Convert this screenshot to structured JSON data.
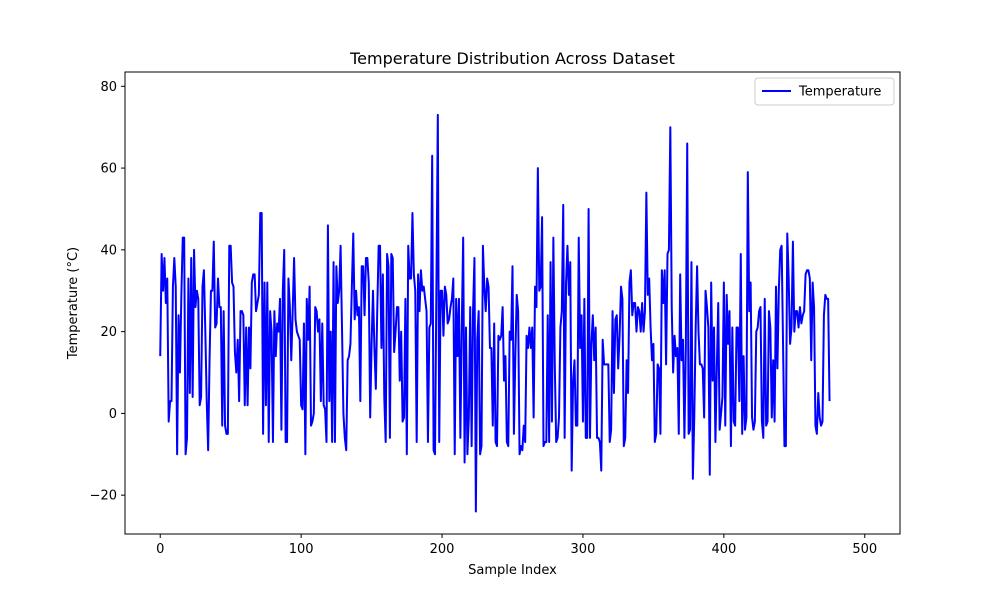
{
  "chart_data": {
    "type": "line",
    "title": "Temperature Distribution Across Dataset",
    "xlabel": "Sample Index",
    "ylabel": "Temperature (°C)",
    "xlim": [
      -25,
      525
    ],
    "ylim": [
      -29.5,
      83.5
    ],
    "x_ticks": [
      0,
      100,
      200,
      300,
      400,
      500
    ],
    "y_ticks": [
      -20,
      0,
      20,
      40,
      60,
      80
    ],
    "x_tick_labels": [
      "0",
      "100",
      "200",
      "300",
      "400",
      "500"
    ],
    "y_tick_labels": [
      "−20",
      "0",
      "20",
      "40",
      "60",
      "80"
    ],
    "legend_position": "top-right",
    "grid": false,
    "series": [
      {
        "name": "Temperature",
        "color": "#0000ff",
        "x_start": 0,
        "x_step": 1,
        "values": [
          14,
          39,
          30,
          38,
          27,
          33,
          -2,
          3,
          3,
          31,
          38,
          31,
          -10,
          24,
          10,
          29,
          43,
          43,
          -10,
          -6,
          33,
          5,
          38,
          4,
          40,
          26,
          30,
          28,
          2,
          4,
          31,
          35,
          20,
          3,
          -9,
          13,
          30,
          30,
          42,
          21,
          22,
          33,
          26,
          26,
          -3,
          25,
          -3,
          -5,
          -5,
          41,
          41,
          32,
          31,
          15,
          10,
          18,
          3,
          25,
          25,
          24,
          2,
          21,
          2,
          21,
          11,
          32,
          34,
          34,
          25,
          27,
          29,
          49,
          49,
          -5,
          32,
          2,
          32,
          -7,
          25,
          20,
          -7,
          25,
          14,
          22,
          20,
          28,
          -4,
          30,
          40,
          -7,
          -7,
          33,
          26,
          13,
          25,
          38,
          23,
          20,
          19,
          18,
          2,
          1,
          22,
          -10,
          28,
          18,
          31,
          -3,
          -2,
          0,
          26,
          25,
          20,
          23,
          3,
          22,
          2,
          1,
          -7,
          46,
          3,
          20,
          -7,
          37,
          -7,
          36,
          27,
          30,
          41,
          21,
          0,
          -6,
          -9,
          13,
          14,
          17,
          31,
          44,
          23,
          30,
          24,
          26,
          3,
          36,
          36,
          24,
          38,
          38,
          32,
          -1,
          17,
          30,
          16,
          6,
          25,
          41,
          41,
          16,
          34,
          4,
          -7,
          39,
          36,
          -6,
          39,
          38,
          15,
          20,
          26,
          26,
          8,
          20,
          -2,
          -1,
          28,
          -10,
          41,
          33,
          33,
          49,
          34,
          30,
          -7,
          34,
          25,
          35,
          30,
          31,
          28,
          25,
          -7,
          21,
          22,
          63,
          -9,
          -10,
          31,
          73,
          -7,
          30,
          30,
          19,
          31,
          29,
          22,
          23,
          26,
          28,
          33,
          -10,
          28,
          14,
          28,
          -6,
          21,
          43,
          -12,
          21,
          -10,
          -1,
          26,
          -8,
          25,
          38,
          -24,
          18,
          25,
          -10,
          -8,
          41,
          31,
          25,
          33,
          31,
          16,
          16,
          -3,
          22,
          -7,
          -8,
          19,
          18,
          19,
          26,
          8,
          14,
          -7,
          -8,
          20,
          18,
          36,
          -5,
          14,
          29,
          25,
          -10,
          -8,
          -9,
          -3,
          -7,
          19,
          16,
          21,
          16,
          21,
          -1,
          31,
          26,
          60,
          30,
          31,
          48,
          -8,
          -7,
          -7,
          24,
          -7,
          37,
          -2,
          43,
          12,
          -7,
          -6,
          -1,
          21,
          25,
          51,
          -6,
          32,
          41,
          29,
          37,
          -14,
          8,
          13,
          -3,
          -3,
          43,
          16,
          24,
          -2,
          28,
          -6,
          -6,
          50,
          -6,
          17,
          24,
          13,
          21,
          -6,
          -6,
          -7,
          -14,
          18,
          12,
          12,
          12,
          12,
          -7,
          -4,
          25,
          5,
          23,
          24,
          11,
          19,
          31,
          28,
          -8,
          -6,
          13,
          5,
          32,
          35,
          24,
          27,
          27,
          20,
          26,
          25,
          20,
          27,
          20,
          25,
          54,
          29,
          33,
          21,
          13,
          17,
          -7,
          -5,
          12,
          11,
          -5,
          35,
          27,
          35,
          12,
          39,
          40,
          70,
          26,
          10,
          19,
          14,
          16,
          -5,
          34,
          13,
          18,
          -6,
          16,
          66,
          -5,
          -4,
          37,
          -16,
          -1,
          21,
          36,
          20,
          12,
          12,
          11,
          -1,
          30,
          26,
          21,
          -15,
          32,
          8,
          21,
          -7,
          11,
          27,
          -4,
          0,
          4,
          32,
          -3,
          29,
          17,
          25,
          -8,
          21,
          -2,
          -3,
          21,
          21,
          3,
          39,
          -5,
          14,
          -4,
          -1,
          59,
          25,
          32,
          -1,
          -4,
          -2,
          20,
          21,
          25,
          26,
          -2,
          -6,
          28,
          -3,
          -2,
          25,
          21,
          -1,
          13,
          -2,
          31,
          11,
          30,
          40,
          41,
          17,
          -8,
          -8,
          44,
          33,
          17,
          21,
          42,
          20,
          25,
          25,
          21,
          26,
          22,
          24,
          25,
          34,
          35,
          35,
          33,
          13,
          32,
          26,
          -3,
          -5,
          5,
          -1,
          -3,
          -2,
          24,
          29,
          28,
          28,
          3
        ]
      }
    ]
  }
}
